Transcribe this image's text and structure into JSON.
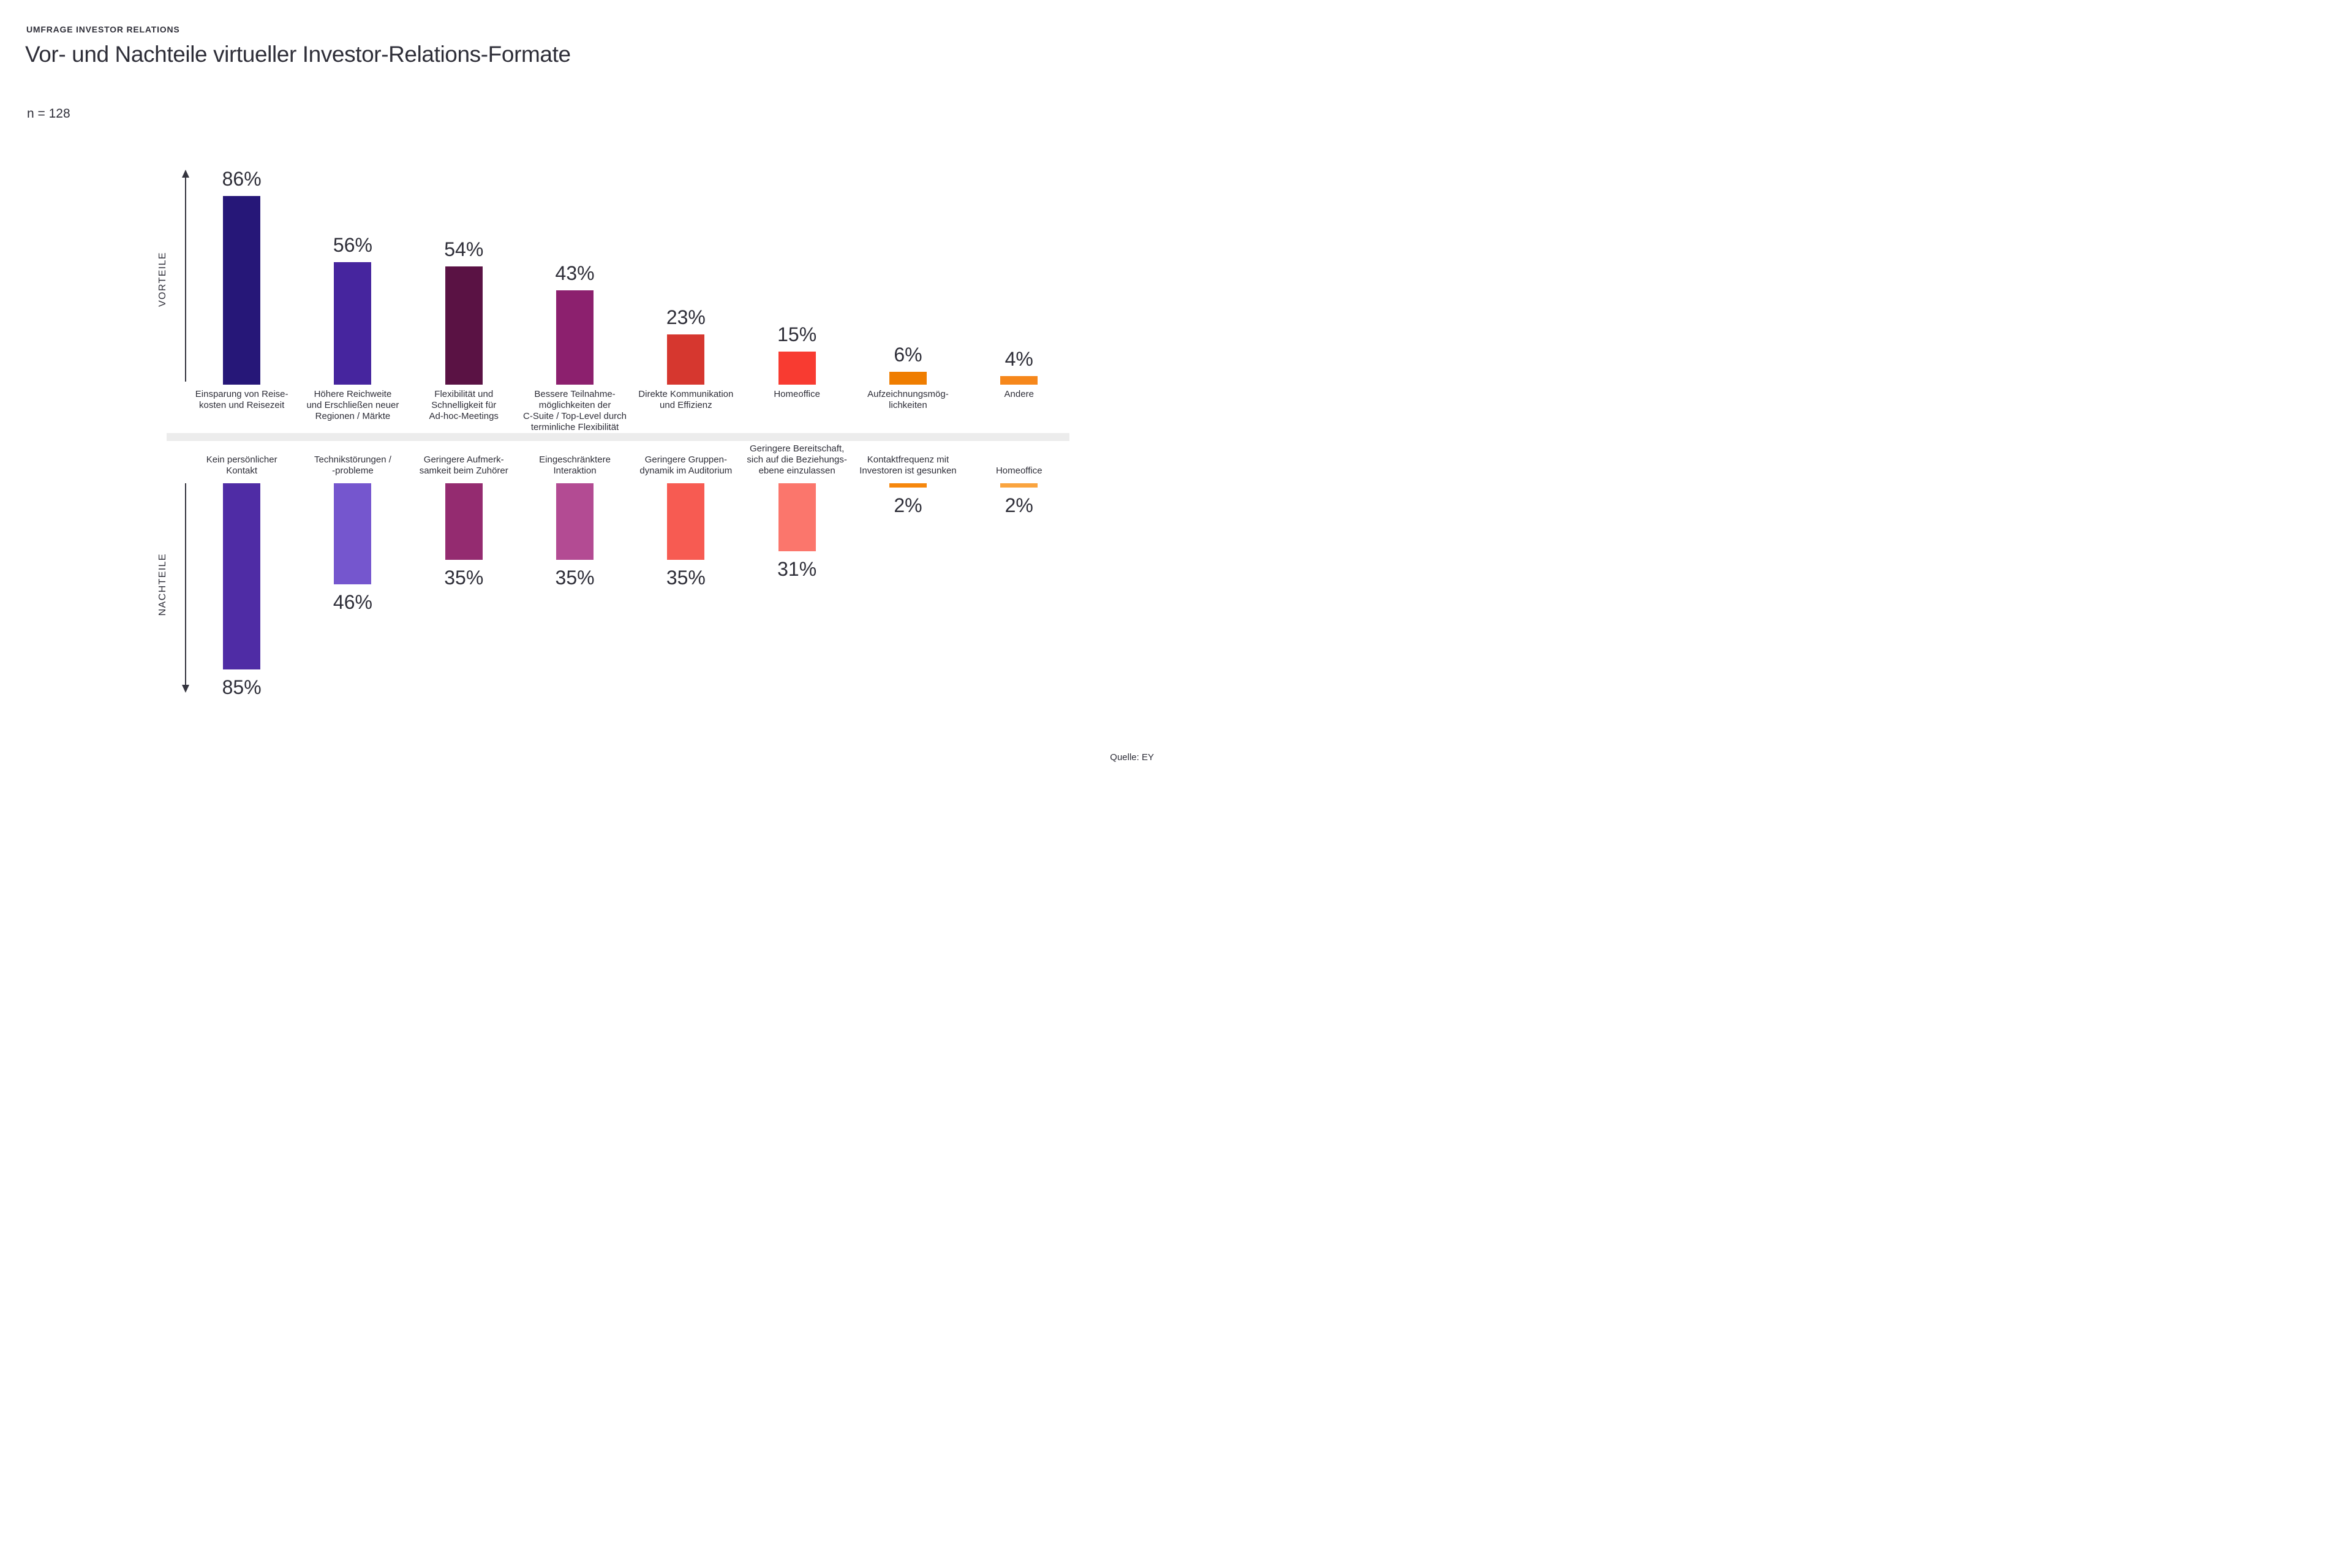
{
  "header": {
    "eyebrow": "UMFRAGE INVESTOR RELATIONS",
    "title": "Vor- und Nachteile virtueller Investor-Relations-Formate",
    "sample_size": "n = 128"
  },
  "source": "Quelle: EY",
  "colors": {
    "text": "#2e2e38",
    "divider": "#ececec",
    "axis": "#35353f"
  },
  "chart_data": {
    "type": "bar",
    "title": "Vor- und Nachteile virtueller Investor-Relations-Formate",
    "unit": "%",
    "sample_size": "n = 128",
    "grid": false,
    "sections": [
      {
        "name": "VORTEILE",
        "direction": "up",
        "categories": [
          [
            "Einsparung von Reise-",
            "kosten und Reisezeit"
          ],
          [
            "Höhere Reichweite",
            "und Erschließen neuer",
            "Regionen / Märkte"
          ],
          [
            "Flexibilität und",
            "Schnelligkeit für",
            "Ad-hoc-Meetings"
          ],
          [
            "Bessere Teilnahme-",
            "möglichkeiten der",
            "C-Suite / Top-Level durch",
            "terminliche Flexibilität"
          ],
          [
            "Direkte Kommunikation",
            "und Effizienz"
          ],
          [
            "Homeoffice"
          ],
          [
            "Aufzeichnungsmög-",
            "lichkeiten"
          ],
          [
            "Andere"
          ]
        ],
        "values": [
          86,
          56,
          54,
          43,
          23,
          15,
          6,
          4
        ],
        "colors": [
          "#261778",
          "#46259E",
          "#5A1244",
          "#8C206E",
          "#D6372F",
          "#F83B31",
          "#EF7D00",
          "#F6871B"
        ]
      },
      {
        "name": "NACHTEILE",
        "direction": "down",
        "categories": [
          [
            "Kein persönlicher",
            "Kontakt"
          ],
          [
            "Technikstörungen /",
            "-probleme"
          ],
          [
            "Geringere Aufmerk-",
            "samkeit beim Zuhörer"
          ],
          [
            "Eingeschränktere",
            "Interaktion"
          ],
          [
            "Geringere Gruppen-",
            "dynamik im Auditorium"
          ],
          [
            "Geringere Bereitschaft,",
            "sich auf die Beziehungs-",
            "ebene einzulassen"
          ],
          [
            "Kontaktfrequenz mit",
            "Investoren ist gesunken"
          ],
          [
            "Homeoffice"
          ]
        ],
        "values": [
          85,
          46,
          35,
          35,
          35,
          31,
          2,
          2
        ],
        "colors": [
          "#4F2CA5",
          "#7556CE",
          "#942B70",
          "#B34B93",
          "#F75B52",
          "#FB766C",
          "#F6870C",
          "#FAA43F"
        ]
      }
    ]
  }
}
